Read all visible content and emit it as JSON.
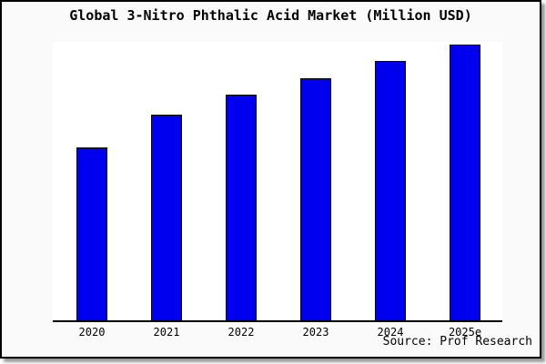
{
  "chart_data": {
    "type": "bar",
    "title": "Global 3-Nitro Phthalic Acid Market (Million USD)",
    "categories": [
      "2020",
      "2021",
      "2022",
      "2023",
      "2024",
      "2025e"
    ],
    "values": [
      62,
      74,
      81,
      87,
      93,
      99
    ],
    "units": "relative bar height as % of plot height (no y-axis scale shown in image)",
    "xlabel": "",
    "ylabel": "",
    "ylim": [
      0,
      100
    ],
    "grid": false,
    "yaxis_labels_visible": false,
    "legend": null,
    "bar_color": "#0000ee",
    "bar_border_color": "#000000",
    "annotations": [
      "Source: Prof Research"
    ]
  },
  "source_note": "Source: Prof Research",
  "colors": {
    "background": "#fafafa",
    "plot_background": "#ffffff",
    "bar_fill": "#0000ee",
    "bar_border": "#000000",
    "axis_line": "#000000",
    "frame_border": "#000000",
    "text": "#000000"
  }
}
